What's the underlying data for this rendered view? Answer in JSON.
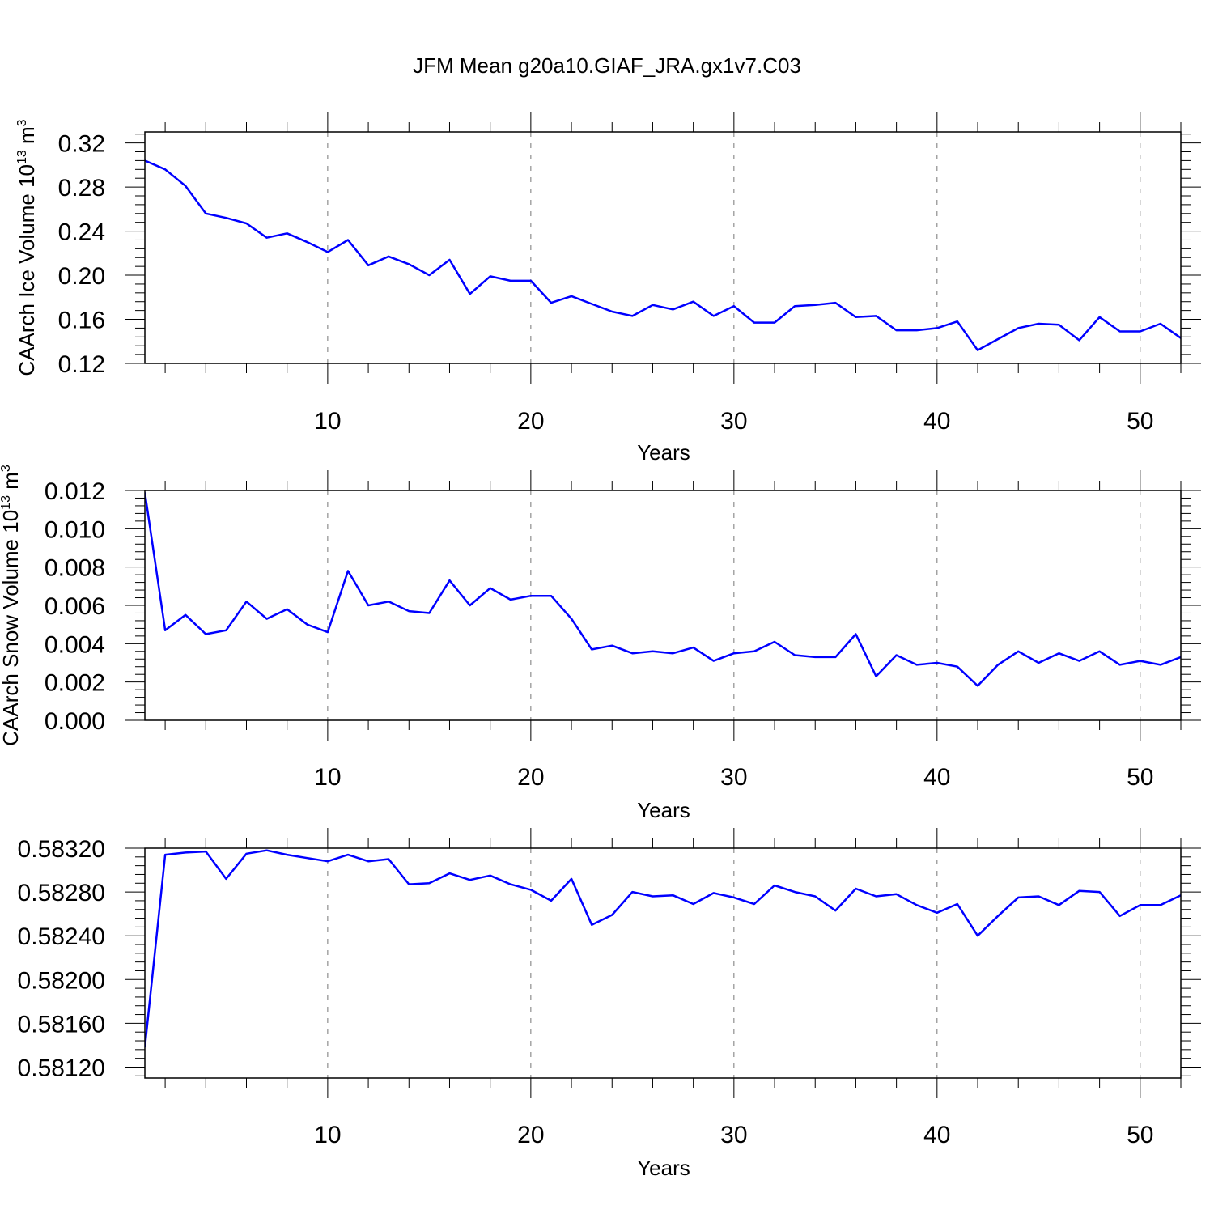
{
  "title": "JFM Mean g20a10.GIAF_JRA.gx1v7.C03",
  "colors": {
    "line": "#0000ff",
    "axis": "#000000",
    "grid": "#777777"
  },
  "chart_data": [
    {
      "type": "line",
      "xlabel": "Years",
      "ylabel": {
        "text": "CAArch Ice Volume 10",
        "exp": "13",
        "unit": " m",
        "unit_exp": "3"
      },
      "xlim": [
        1,
        52
      ],
      "ylim": [
        0.12,
        0.33
      ],
      "xticks": [
        10,
        20,
        30,
        40,
        50
      ],
      "yticks": [
        "0.12",
        "0.16",
        "0.20",
        "0.24",
        "0.28",
        "0.32"
      ],
      "grid": "x-major-dashed",
      "x": [
        1,
        2,
        3,
        4,
        5,
        6,
        7,
        8,
        9,
        10,
        11,
        12,
        13,
        14,
        15,
        16,
        17,
        18,
        19,
        20,
        21,
        22,
        23,
        24,
        25,
        26,
        27,
        28,
        29,
        30,
        31,
        32,
        33,
        34,
        35,
        36,
        37,
        38,
        39,
        40,
        41,
        42,
        43,
        44,
        45,
        46,
        47,
        48,
        49,
        50,
        51,
        52
      ],
      "values": [
        0.304,
        0.296,
        0.281,
        0.256,
        0.252,
        0.247,
        0.234,
        0.238,
        0.23,
        0.221,
        0.232,
        0.209,
        0.217,
        0.21,
        0.2,
        0.214,
        0.183,
        0.199,
        0.195,
        0.195,
        0.175,
        0.181,
        0.174,
        0.167,
        0.163,
        0.173,
        0.169,
        0.176,
        0.163,
        0.172,
        0.157,
        0.157,
        0.172,
        0.173,
        0.175,
        0.162,
        0.163,
        0.15,
        0.15,
        0.152,
        0.158,
        0.132,
        0.142,
        0.152,
        0.156,
        0.155,
        0.141,
        0.162,
        0.149,
        0.149,
        0.156,
        0.143
      ]
    },
    {
      "type": "line",
      "xlabel": "Years",
      "ylabel": {
        "text": "CAArch Snow Volume 10",
        "exp": "13",
        "unit": " m",
        "unit_exp": "3"
      },
      "xlim": [
        1,
        52
      ],
      "ylim": [
        0.0,
        0.012
      ],
      "xticks": [
        10,
        20,
        30,
        40,
        50
      ],
      "yticks": [
        "0.000",
        "0.002",
        "0.004",
        "0.006",
        "0.008",
        "0.010",
        "0.012"
      ],
      "grid": "x-major-dashed",
      "x": [
        1,
        2,
        3,
        4,
        5,
        6,
        7,
        8,
        9,
        10,
        11,
        12,
        13,
        14,
        15,
        16,
        17,
        18,
        19,
        20,
        21,
        22,
        23,
        24,
        25,
        26,
        27,
        28,
        29,
        30,
        31,
        32,
        33,
        34,
        35,
        36,
        37,
        38,
        39,
        40,
        41,
        42,
        43,
        44,
        45,
        46,
        47,
        48,
        49,
        50,
        51,
        52
      ],
      "values": [
        0.0119,
        0.0047,
        0.0055,
        0.0045,
        0.0047,
        0.0062,
        0.0053,
        0.0058,
        0.005,
        0.0046,
        0.0078,
        0.006,
        0.0062,
        0.0057,
        0.0056,
        0.0073,
        0.006,
        0.0069,
        0.0063,
        0.0065,
        0.0065,
        0.0053,
        0.0037,
        0.0039,
        0.0035,
        0.0036,
        0.0035,
        0.0038,
        0.0031,
        0.0035,
        0.0036,
        0.0041,
        0.0034,
        0.0033,
        0.0033,
        0.0045,
        0.0023,
        0.0034,
        0.0029,
        0.003,
        0.0028,
        0.0018,
        0.0029,
        0.0036,
        0.003,
        0.0035,
        0.0031,
        0.0036,
        0.0029,
        0.0031,
        0.0029,
        0.0033
      ]
    },
    {
      "type": "line",
      "xlabel": "Years",
      "ylabel": null,
      "xlim": [
        1,
        52
      ],
      "ylim": [
        0.5811,
        0.5832
      ],
      "xticks": [
        10,
        20,
        30,
        40,
        50
      ],
      "yticks": [
        "0.58120",
        "0.58160",
        "0.58200",
        "0.58240",
        "0.58280",
        "0.58320"
      ],
      "grid": "x-major-dashed",
      "x": [
        1,
        2,
        3,
        4,
        5,
        6,
        7,
        8,
        9,
        10,
        11,
        12,
        13,
        14,
        15,
        16,
        17,
        18,
        19,
        20,
        21,
        22,
        23,
        24,
        25,
        26,
        27,
        28,
        29,
        30,
        31,
        32,
        33,
        34,
        35,
        36,
        37,
        38,
        39,
        40,
        41,
        42,
        43,
        44,
        45,
        46,
        47,
        48,
        49,
        50,
        51,
        52
      ],
      "values": [
        0.58138,
        0.58314,
        0.58316,
        0.58317,
        0.58292,
        0.58315,
        0.58318,
        0.58314,
        0.58311,
        0.58308,
        0.58314,
        0.58308,
        0.5831,
        0.58287,
        0.58288,
        0.58297,
        0.58291,
        0.58295,
        0.58287,
        0.58282,
        0.58272,
        0.58292,
        0.5825,
        0.58259,
        0.5828,
        0.58276,
        0.58277,
        0.58269,
        0.58279,
        0.58275,
        0.58269,
        0.58286,
        0.5828,
        0.58276,
        0.58263,
        0.58283,
        0.58276,
        0.58278,
        0.58268,
        0.58261,
        0.58269,
        0.5824,
        0.58258,
        0.58275,
        0.58276,
        0.58268,
        0.58281,
        0.5828,
        0.58258,
        0.58268,
        0.58268,
        0.58277
      ]
    }
  ]
}
